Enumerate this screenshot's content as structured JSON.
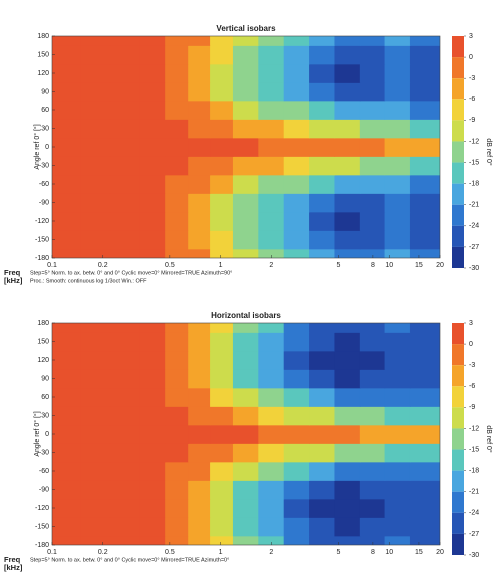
{
  "chart_data": [
    {
      "type": "contour",
      "title": "Vertical isobars",
      "ylabel": "Angle ref 0° [°]",
      "xlabel": "Freq",
      "xunit": "[kHz]",
      "note1": "Step=5°  Norm. to ax. betw. 0° and 0°  Cyclic move=0°  Mirrored=TRUE  Azimuth=90°",
      "note2": "Proc.: Smooth: continuous log 1/3oct   Win.: OFF",
      "colorbar_label": "dB ref 0°",
      "log_x": true,
      "xlim": [
        0.1,
        20
      ],
      "xticks": [
        0.1,
        0.2,
        0.5,
        1,
        2,
        5,
        8,
        10,
        15,
        20
      ],
      "ylim": [
        -180,
        180
      ],
      "yticks": [
        -180,
        -150,
        -120,
        -90,
        -60,
        -30,
        0,
        30,
        60,
        90,
        120,
        150,
        180
      ],
      "cticks": [
        3,
        0,
        -3,
        -6,
        -9,
        -12,
        -15,
        -18,
        -21,
        -24,
        -27,
        -30
      ],
      "colors": [
        "#e8512c",
        "#f0772a",
        "#f5a42a",
        "#f2d23a",
        "#cddc4c",
        "#8fd38e",
        "#5ac7bd",
        "#49a6df",
        "#2f78cf",
        "#2656b6",
        "#1d3793"
      ],
      "x": [
        0.12,
        0.18,
        0.27,
        0.4,
        0.55,
        0.75,
        1,
        1.4,
        2,
        2.8,
        4,
        5.6,
        8,
        11,
        16
      ],
      "y": [
        -180,
        -150,
        -120,
        -90,
        -60,
        -30,
        0,
        30,
        60,
        90,
        120,
        150,
        180
      ],
      "z": [
        [
          1,
          1,
          1,
          1,
          0,
          -2,
          -6,
          -10,
          -13,
          -16,
          -20,
          -23,
          -22,
          -20,
          -22
        ],
        [
          1,
          1,
          1,
          1,
          -1,
          -3,
          -8,
          -12,
          -15,
          -18,
          -22,
          -25,
          -24,
          -22,
          -24
        ],
        [
          1,
          1,
          1,
          1,
          -1,
          -4,
          -10,
          -14,
          -17,
          -20,
          -24,
          -27,
          -25,
          -23,
          -25
        ],
        [
          1,
          1,
          1,
          1,
          -1,
          -4,
          -9,
          -13,
          -16,
          -19,
          -22,
          -25,
          -24,
          -22,
          -24
        ],
        [
          1,
          1,
          1,
          1,
          0,
          -2,
          -5,
          -9,
          -12,
          -14,
          -17,
          -19,
          -20,
          -20,
          -22
        ],
        [
          1,
          1,
          1,
          1,
          1,
          0,
          -1,
          -3,
          -5,
          -7,
          -9,
          -11,
          -12,
          -14,
          -16
        ],
        [
          1,
          1,
          1,
          1,
          1,
          1,
          1,
          1,
          0,
          0,
          -1,
          -2,
          -2,
          -4,
          -5
        ],
        [
          1,
          1,
          1,
          1,
          1,
          0,
          -1,
          -3,
          -5,
          -7,
          -9,
          -11,
          -12,
          -14,
          -16
        ],
        [
          1,
          1,
          1,
          1,
          0,
          -2,
          -5,
          -9,
          -12,
          -14,
          -17,
          -19,
          -20,
          -20,
          -22
        ],
        [
          1,
          1,
          1,
          1,
          -1,
          -4,
          -9,
          -13,
          -16,
          -19,
          -22,
          -25,
          -24,
          -22,
          -24
        ],
        [
          1,
          1,
          1,
          1,
          -1,
          -4,
          -10,
          -14,
          -17,
          -20,
          -24,
          -27,
          -25,
          -23,
          -25
        ],
        [
          1,
          1,
          1,
          1,
          -1,
          -3,
          -8,
          -12,
          -15,
          -18,
          -22,
          -25,
          -24,
          -22,
          -24
        ],
        [
          1,
          1,
          1,
          1,
          0,
          -2,
          -6,
          -10,
          -13,
          -16,
          -20,
          -23,
          -22,
          -20,
          -22
        ]
      ]
    },
    {
      "type": "contour",
      "title": "Horizontal isobars",
      "ylabel": "Angle ref 0° [°]",
      "xlabel": "Freq",
      "xunit": "[kHz]",
      "note1": "Step=5°  Norm. to ax. betw. 0° and 0°  Cyclic move=0°  Mirrored=TRUE  Azimuth=0°",
      "colorbar_label": "dB ref 0°",
      "log_x": true,
      "xlim": [
        0.1,
        20
      ],
      "xticks": [
        0.1,
        0.2,
        0.5,
        1,
        2,
        5,
        8,
        10,
        15,
        20
      ],
      "ylim": [
        -180,
        180
      ],
      "yticks": [
        -180,
        -150,
        -120,
        -90,
        -60,
        -30,
        0,
        30,
        60,
        90,
        120,
        150,
        180
      ],
      "cticks": [
        3,
        0,
        -3,
        -6,
        -9,
        -12,
        -15,
        -18,
        -21,
        -24,
        -27,
        -30
      ],
      "colors": [
        "#e8512c",
        "#f0772a",
        "#f5a42a",
        "#f2d23a",
        "#cddc4c",
        "#8fd38e",
        "#5ac7bd",
        "#49a6df",
        "#2f78cf",
        "#2656b6",
        "#1d3793"
      ],
      "x": [
        0.12,
        0.18,
        0.27,
        0.4,
        0.55,
        0.75,
        1,
        1.4,
        2,
        2.8,
        4,
        5.6,
        8,
        11,
        16
      ],
      "y": [
        -180,
        -150,
        -120,
        -90,
        -60,
        -30,
        0,
        30,
        60,
        90,
        120,
        150,
        180
      ],
      "z": [
        [
          1,
          1,
          1,
          1,
          0,
          -3,
          -8,
          -13,
          -17,
          -21,
          -24,
          -26,
          -25,
          -23,
          -24
        ],
        [
          1,
          1,
          1,
          1,
          -1,
          -4,
          -10,
          -15,
          -19,
          -23,
          -26,
          -27,
          -26,
          -24,
          -25
        ],
        [
          1,
          1,
          1,
          1,
          -1,
          -5,
          -11,
          -16,
          -20,
          -24,
          -27,
          -28,
          -27,
          -25,
          -26
        ],
        [
          1,
          1,
          1,
          1,
          -1,
          -4,
          -10,
          -15,
          -19,
          -22,
          -25,
          -27,
          -26,
          -24,
          -25
        ],
        [
          1,
          1,
          1,
          1,
          0,
          -2,
          -6,
          -11,
          -14,
          -17,
          -20,
          -22,
          -22,
          -21,
          -22
        ],
        [
          1,
          1,
          1,
          1,
          1,
          0,
          -2,
          -4,
          -6,
          -9,
          -11,
          -13,
          -14,
          -15,
          -17
        ],
        [
          1,
          1,
          1,
          1,
          1,
          1,
          1,
          1,
          0,
          0,
          -1,
          -2,
          -3,
          -4,
          -5
        ],
        [
          1,
          1,
          1,
          1,
          1,
          0,
          -2,
          -4,
          -6,
          -9,
          -11,
          -13,
          -14,
          -15,
          -17
        ],
        [
          1,
          1,
          1,
          1,
          0,
          -2,
          -6,
          -11,
          -14,
          -17,
          -20,
          -22,
          -22,
          -21,
          -22
        ],
        [
          1,
          1,
          1,
          1,
          -1,
          -4,
          -10,
          -15,
          -19,
          -22,
          -25,
          -27,
          -26,
          -24,
          -25
        ],
        [
          1,
          1,
          1,
          1,
          -1,
          -5,
          -11,
          -16,
          -20,
          -24,
          -27,
          -28,
          -27,
          -25,
          -26
        ],
        [
          1,
          1,
          1,
          1,
          -1,
          -4,
          -10,
          -15,
          -19,
          -23,
          -26,
          -27,
          -26,
          -24,
          -25
        ],
        [
          1,
          1,
          1,
          1,
          0,
          -3,
          -8,
          -13,
          -17,
          -21,
          -24,
          -26,
          -25,
          -23,
          -24
        ]
      ]
    }
  ]
}
